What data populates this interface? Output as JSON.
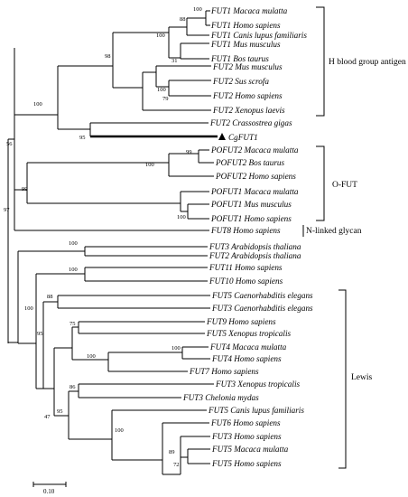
{
  "tree": {
    "scale_label": "0.10",
    "groups": [
      {
        "name": "H blood group antigen"
      },
      {
        "name": "O-FUT"
      },
      {
        "name": "N-linked glycan"
      },
      {
        "name": "Lewis"
      }
    ],
    "leaves": [
      {
        "gene": "FUT1",
        "species": "Macaca mulatta"
      },
      {
        "gene": "FUT1",
        "species": "Homo sapiens"
      },
      {
        "gene": "FUT1",
        "species": "Canis lupus familiaris"
      },
      {
        "gene": "FUT1",
        "species": "Mus musculus"
      },
      {
        "gene": "FUT1",
        "species": "Bos taurus"
      },
      {
        "gene": "FUT2",
        "species": "Mus musculus"
      },
      {
        "gene": "FUT2",
        "species": "Sus scrofa"
      },
      {
        "gene": "FUT2",
        "species": "Homo sapiens"
      },
      {
        "gene": "FUT2",
        "species": "Xenopus laevis"
      },
      {
        "gene": "FUT2",
        "species": "Crassostrea gigas"
      },
      {
        "gene": "CgFUT1",
        "species": ""
      },
      {
        "gene": "POFUT2",
        "species": "Macaca mulatta"
      },
      {
        "gene": "POFUT2",
        "species": "Bos taurus"
      },
      {
        "gene": "POFUT2",
        "species": "Homo sapiens"
      },
      {
        "gene": "POFUT1",
        "species": "Macaca mulatta"
      },
      {
        "gene": "POFUT1",
        "species": "Mus musculus"
      },
      {
        "gene": "POFUT1",
        "species": "Homo sapiens"
      },
      {
        "gene": "FUT8",
        "species": "Homo sapiens"
      },
      {
        "gene": "FUT3",
        "species": "Arabidopsis thaliana"
      },
      {
        "gene": "FUT2",
        "species": "Arabidopsis thaliana"
      },
      {
        "gene": "FUT11",
        "species": "Homo sapiens"
      },
      {
        "gene": "FUT10",
        "species": "Homo sapiens"
      },
      {
        "gene": "FUT5",
        "species": "Caenorhabditis elegans"
      },
      {
        "gene": "FUT3",
        "species": "Caenorhabditis elegans"
      },
      {
        "gene": "FUT9",
        "species": "Homo sapiens"
      },
      {
        "gene": "FUT5",
        "species": "Xenopus tropicalis"
      },
      {
        "gene": "FUT4",
        "species": "Macaca mulatta"
      },
      {
        "gene": "FUT4",
        "species": "Homo sapiens"
      },
      {
        "gene": "FUT7",
        "species": "Homo sapiens"
      },
      {
        "gene": "FUT3",
        "species": "Xenopus tropicalis"
      },
      {
        "gene": "FUT3",
        "species": "Chelonia mydas"
      },
      {
        "gene": "FUT5",
        "species": "Canis lupus familiaris"
      },
      {
        "gene": "FUT6",
        "species": "Homo sapiens"
      },
      {
        "gene": "FUT3",
        "species": "Homo sapiens"
      },
      {
        "gene": "FUT5",
        "species": "Macaca mulatta"
      },
      {
        "gene": "FUT5",
        "species": "Homo sapiens"
      }
    ],
    "bootstrap_values": [
      "100",
      "88",
      "100",
      "98",
      "31",
      "100",
      "79",
      "100",
      "95",
      "56",
      "99",
      "100",
      "99",
      "100",
      "97",
      "100",
      "100",
      "88",
      "100",
      "95",
      "75",
      "100",
      "100",
      "86",
      "47",
      "95",
      "100",
      "89",
      "72"
    ]
  }
}
